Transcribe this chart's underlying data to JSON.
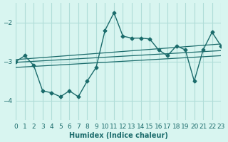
{
  "xlabel": "Humidex (Indice chaleur)",
  "bg_color": "#d8f5f0",
  "grid_color": "#b0ddd8",
  "line_color": "#1a6b6b",
  "xlim": [
    0,
    23
  ],
  "ylim": [
    -4.5,
    -1.5
  ],
  "yticks": [
    -4,
    -3,
    -2
  ],
  "xticks": [
    0,
    1,
    2,
    3,
    4,
    5,
    6,
    7,
    8,
    9,
    10,
    11,
    12,
    13,
    14,
    15,
    16,
    17,
    18,
    19,
    20,
    21,
    22,
    23
  ],
  "curve_x": [
    0,
    1,
    2,
    3,
    4,
    5,
    6,
    7,
    8,
    9,
    10,
    11,
    12,
    13,
    14,
    15,
    16,
    17,
    18,
    19,
    20,
    21,
    22,
    23
  ],
  "curve_y": [
    -3.0,
    -2.85,
    -3.1,
    -3.75,
    -3.8,
    -3.9,
    -3.75,
    -3.9,
    -3.5,
    -3.15,
    -2.2,
    -1.75,
    -2.35,
    -2.4,
    -2.4,
    -2.42,
    -2.7,
    -2.85,
    -2.6,
    -2.7,
    -3.5,
    -2.7,
    -2.25,
    -2.6
  ],
  "line1_x": [
    0,
    23
  ],
  "line1_y": [
    -2.95,
    -2.55
  ],
  "line2_x": [
    0,
    23
  ],
  "line2_y": [
    -3.02,
    -2.72
  ],
  "line3_x": [
    0,
    23
  ],
  "line3_y": [
    -3.15,
    -2.85
  ]
}
